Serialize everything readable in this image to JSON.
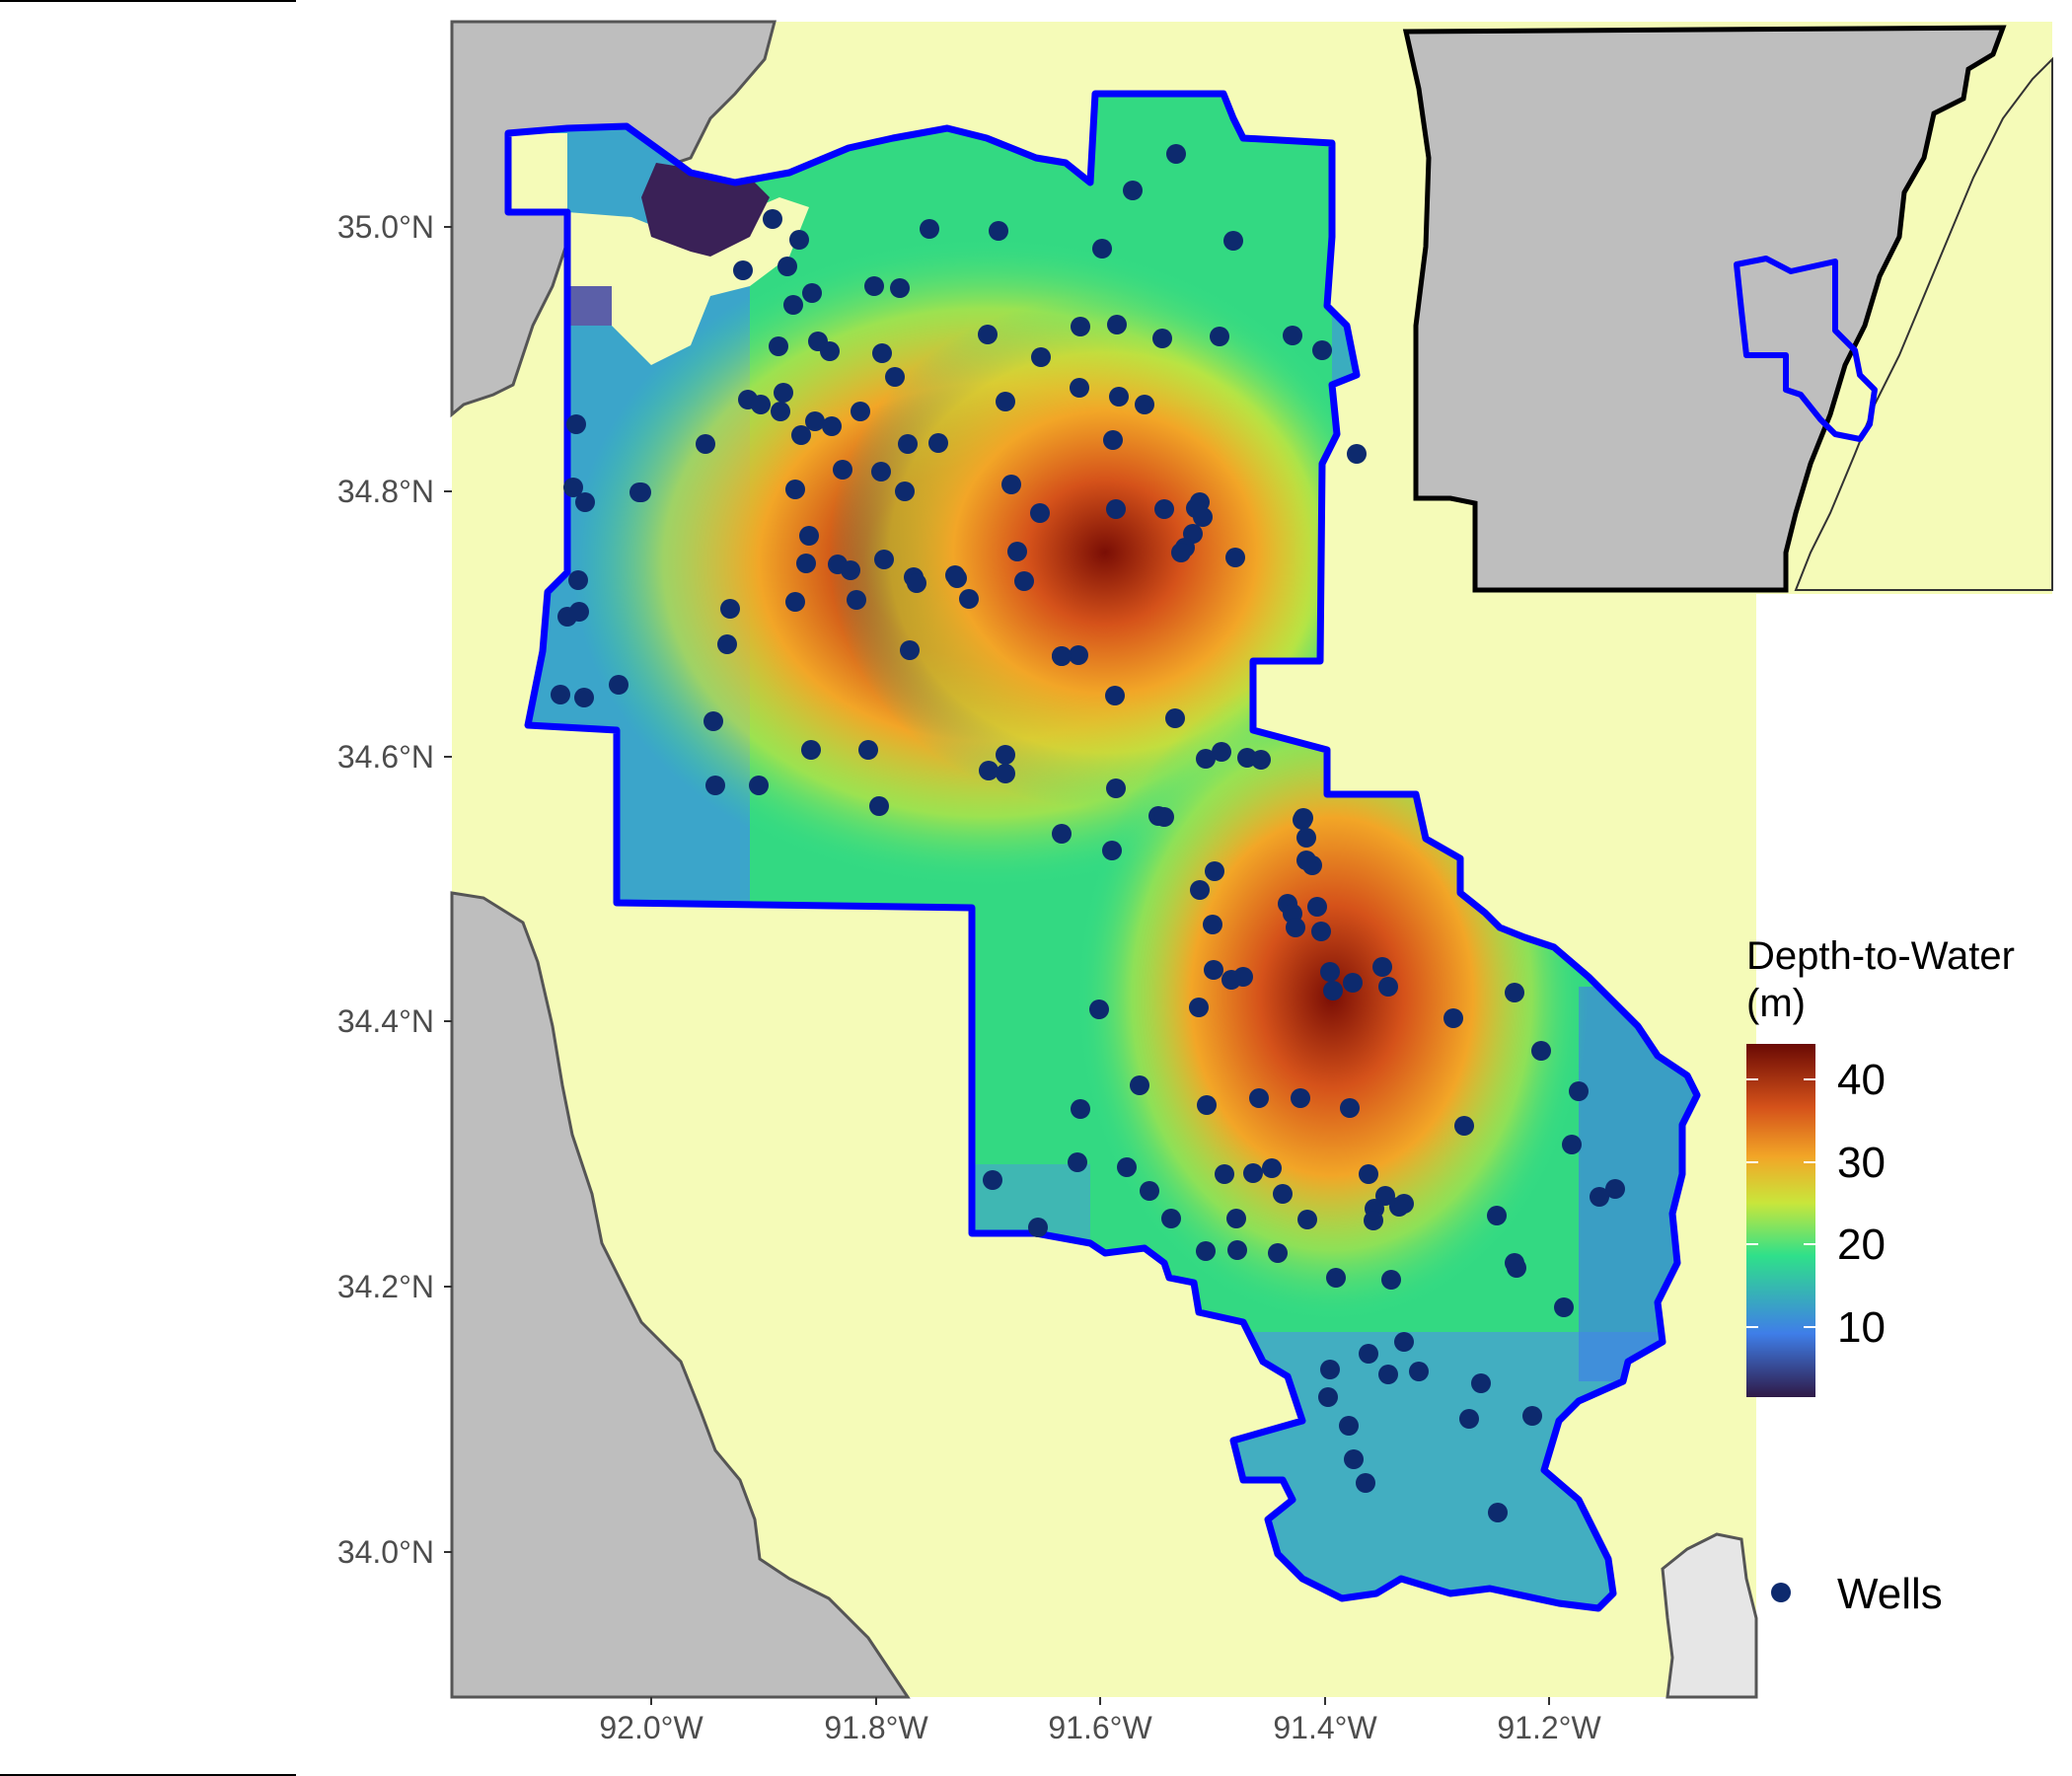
{
  "map": {
    "x_axis_ticks": [
      "92.0°W",
      "91.8°W",
      "91.6°W",
      "91.4°W",
      "91.2°W"
    ],
    "y_axis_ticks": [
      "35.0°N",
      "34.8°N",
      "34.6°N",
      "34.4°N",
      "34.2°N",
      "34.0°N"
    ],
    "colors": {
      "background_land": "#f5fbb8",
      "outside_land": "#bebebe",
      "boundary": "#0000ff",
      "wells": "#0d2a6e"
    },
    "depth_hotspots_m": [
      {
        "lon": -91.82,
        "lat": 34.79,
        "depth": 44
      },
      {
        "lon": -91.58,
        "lat": 34.75,
        "depth": 45
      },
      {
        "lon": -91.4,
        "lat": 34.42,
        "depth": 44
      }
    ]
  },
  "legend": {
    "title_line1": "Depth-to-Water",
    "title_line2": "(m)",
    "ticks": [
      "40",
      "30",
      "20",
      "10"
    ],
    "wells_label": "Wells",
    "colormap": [
      "#3a2157",
      "#3f7ee8",
      "#2fe08a",
      "#c9e63b",
      "#f2a627",
      "#d5521a",
      "#7a0e05"
    ]
  }
}
